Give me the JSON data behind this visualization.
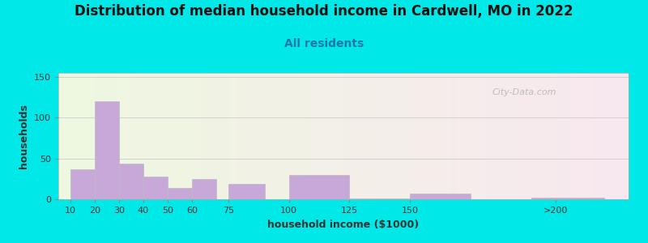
{
  "title": "Distribution of median household income in Cardwell, MO in 2022",
  "subtitle": "All residents",
  "xlabel": "household income ($1000)",
  "ylabel": "households",
  "bar_heights": [
    37,
    120,
    44,
    28,
    14,
    25,
    19,
    30,
    1,
    7,
    2
  ],
  "bar_lefts": [
    10,
    20,
    30,
    40,
    50,
    60,
    75,
    100,
    125,
    150,
    200
  ],
  "bar_widths": [
    10,
    10,
    10,
    10,
    10,
    10,
    15,
    25,
    25,
    25,
    30
  ],
  "bar_color": "#c8a8d8",
  "bar_edgecolor": "#bbbbbb",
  "ylim": [
    0,
    155
  ],
  "yticks": [
    0,
    50,
    100,
    150
  ],
  "xtick_positions": [
    10,
    20,
    30,
    40,
    50,
    60,
    75,
    100,
    125,
    150,
    210
  ],
  "xtick_labels": [
    "10",
    "20",
    "30",
    "40",
    "50",
    "60",
    "75",
    "100",
    "125",
    "150",
    ">200"
  ],
  "xlim_min": 5,
  "xlim_max": 240,
  "bg_outer": "#00e8e8",
  "bg_left_color": "#eef8e0",
  "bg_right_color": "#f8e8f0",
  "watermark": "City-Data.com",
  "title_fontsize": 12,
  "subtitle_fontsize": 10,
  "axis_label_fontsize": 9
}
